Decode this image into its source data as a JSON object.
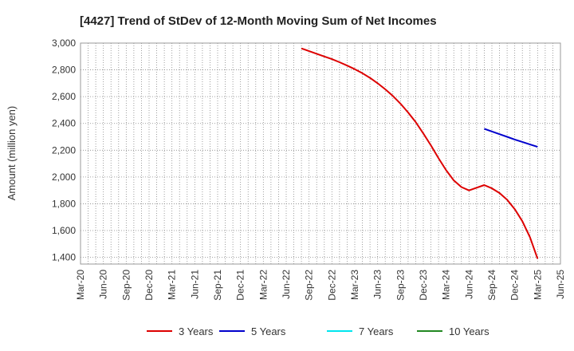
{
  "chart_data": {
    "type": "line",
    "title": "[4427]  Trend of StDev of 12-Month Moving Sum of Net Incomes",
    "ylabel": "Amount (million yen)",
    "xlabel": "",
    "ylim": [
      1350,
      3000
    ],
    "yticks": [
      1400,
      1600,
      1800,
      2000,
      2200,
      2400,
      2600,
      2800,
      3000
    ],
    "ytick_labels": [
      "1,400",
      "1,600",
      "1,800",
      "2,000",
      "2,200",
      "2,400",
      "2,600",
      "2,800",
      "3,000"
    ],
    "x_start": "2020-03",
    "x_end": "2025-06",
    "xtick_labels": [
      "Mar-20",
      "Jun-20",
      "Sep-20",
      "Dec-20",
      "Mar-21",
      "Jun-21",
      "Sep-21",
      "Dec-21",
      "Mar-22",
      "Jun-22",
      "Sep-22",
      "Dec-22",
      "Mar-23",
      "Jun-23",
      "Sep-23",
      "Dec-23",
      "Mar-24",
      "Jun-24",
      "Sep-24",
      "Dec-24",
      "Mar-25",
      "Jun-25"
    ],
    "grid": true,
    "legend_position": "bottom",
    "series": [
      {
        "name": "3 Years",
        "color": "#dd0000",
        "x": [
          "2022-08",
          "2022-09",
          "2022-10",
          "2022-11",
          "2022-12",
          "2023-01",
          "2023-02",
          "2023-03",
          "2023-04",
          "2023-05",
          "2023-06",
          "2023-07",
          "2023-08",
          "2023-09",
          "2023-10",
          "2023-11",
          "2023-12",
          "2024-01",
          "2024-02",
          "2024-03",
          "2024-04",
          "2024-05",
          "2024-06",
          "2024-07",
          "2024-08",
          "2024-09",
          "2024-10",
          "2024-11",
          "2024-12",
          "2025-01",
          "2025-02",
          "2025-03"
        ],
        "values": [
          2960,
          2940,
          2920,
          2900,
          2880,
          2857,
          2832,
          2805,
          2775,
          2740,
          2700,
          2655,
          2605,
          2548,
          2482,
          2410,
          2325,
          2235,
          2140,
          2050,
          1975,
          1925,
          1900,
          1920,
          1940,
          1915,
          1880,
          1830,
          1760,
          1670,
          1550,
          1390
        ]
      },
      {
        "name": "5 Years",
        "color": "#0000cc",
        "x": [
          "2024-08",
          "2024-09",
          "2024-10",
          "2024-11",
          "2024-12",
          "2025-01",
          "2025-02",
          "2025-03"
        ],
        "values": [
          2360,
          2340,
          2320,
          2300,
          2280,
          2262,
          2243,
          2225
        ]
      },
      {
        "name": "7 Years",
        "color": "#00e5ee",
        "x": [],
        "values": []
      },
      {
        "name": "10 Years",
        "color": "#228822",
        "x": [],
        "values": []
      }
    ]
  }
}
